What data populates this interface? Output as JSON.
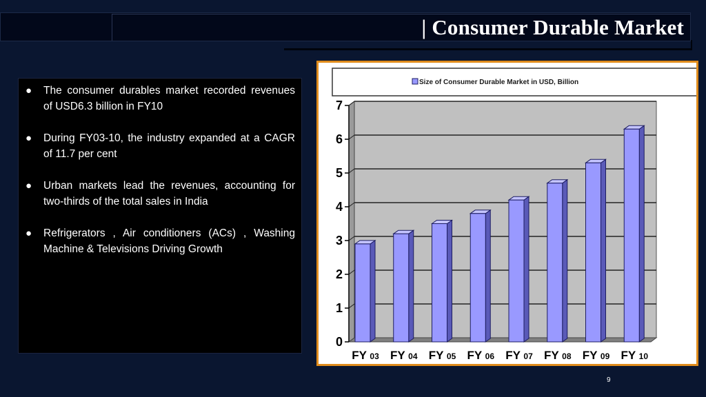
{
  "slide": {
    "title": "| Consumer Durable Market",
    "page_number": "9"
  },
  "bullets": [
    {
      "text": "The consumer durables market recorded revenues of USD6.3 billion in FY10"
    },
    {
      "text": "During FY03-10, the industry expanded at a CAGR of 11.7 per cent"
    },
    {
      "text": "Urban markets lead the revenues, accounting for two-thirds of the total sales in India"
    },
    {
      "text": "Refrigerators , Air conditioners (ACs) , Washing Machine & Televisions Driving Growth"
    }
  ],
  "chart_data": {
    "type": "bar",
    "title": "",
    "legend": "Size of Consumer Durable Market in USD, Billion",
    "legend_placement": "top",
    "categories": [
      "FY 03",
      "FY 04",
      "FY 05",
      "FY 06",
      "FY 07",
      "FY 08",
      "FY 09",
      "FY 10"
    ],
    "values": [
      2.9,
      3.2,
      3.5,
      3.8,
      4.2,
      4.7,
      5.3,
      6.3
    ],
    "yticks": [
      "0",
      "1",
      "2",
      "3",
      "4",
      "5",
      "6",
      "7"
    ],
    "ylim": [
      0,
      7
    ],
    "grid": true,
    "colors": {
      "bar_front": "#9999ff",
      "bar_side": "#5a5ab8",
      "bar_top": "#c4c4ff",
      "bar_edge": "#1c1c60",
      "plot_wall": "#c0c0c0",
      "floor": "#808080",
      "frame": "#e08c1c"
    }
  }
}
